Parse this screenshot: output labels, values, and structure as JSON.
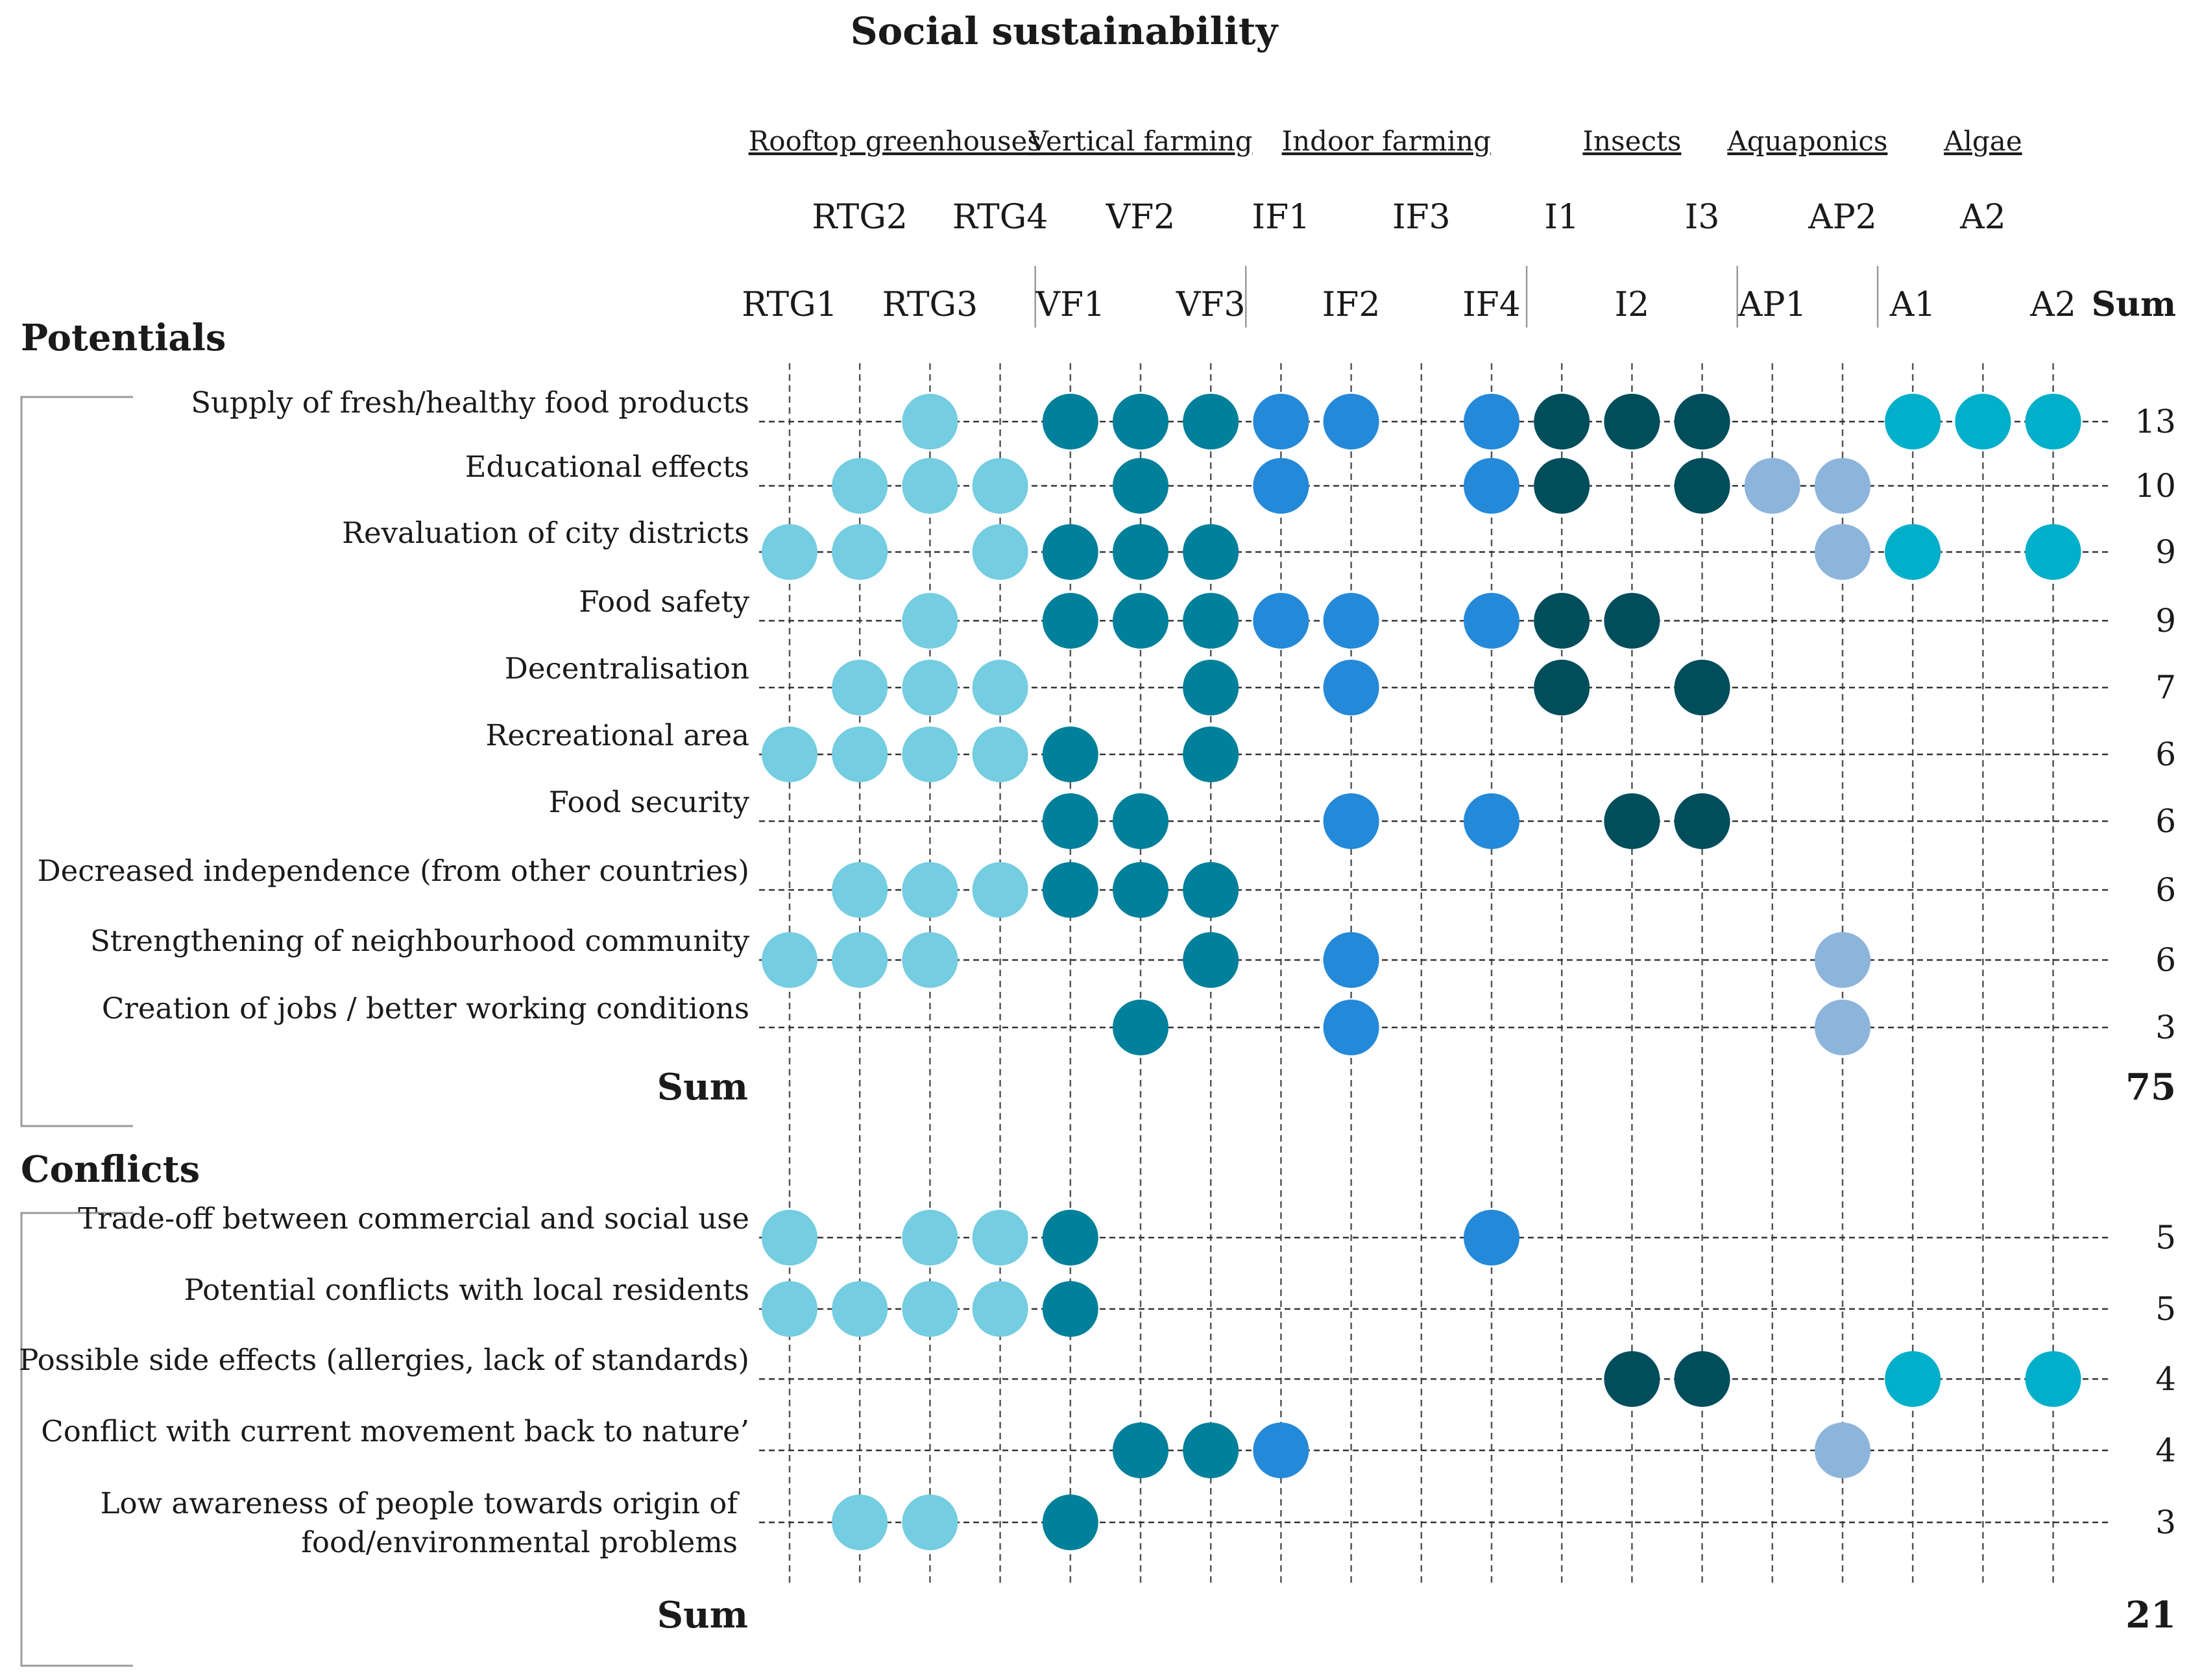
{
  "chart_data": {
    "type": "dot-matrix",
    "title": "Social sustainability",
    "groups": [
      {
        "name": "Rooftop greenhouses",
        "codes": [
          "RTG1",
          "RTG2",
          "RTG3",
          "RTG4"
        ],
        "color": "#74cde0"
      },
      {
        "name": "Vertical farming",
        "codes": [
          "VF1",
          "VF2",
          "VF3"
        ],
        "color": "#00809a"
      },
      {
        "name": "Indoor farming",
        "codes": [
          "IF1",
          "IF2",
          "IF3",
          "IF4"
        ],
        "color": "#2489d8"
      },
      {
        "name": "Insects",
        "codes": [
          "I1",
          "I2",
          "I3"
        ],
        "color": "#004d5c"
      },
      {
        "name": "Aquaponics",
        "codes": [
          "AP1",
          "AP2"
        ],
        "color": "#8db5dc"
      },
      {
        "name": "Algae",
        "codes": [
          "A1",
          "A2",
          "A2"
        ],
        "color": "#00afc9"
      }
    ],
    "sum_header": "Sum",
    "sections": [
      {
        "name": "Potentials",
        "rows": [
          {
            "label": "Supply of fresh/healthy food products",
            "marks": [
              3,
              5,
              6,
              7,
              8,
              9,
              11,
              12,
              13,
              14,
              17,
              18,
              19
            ],
            "sum": "13"
          },
          {
            "label": "Educational effects",
            "marks": [
              2,
              3,
              4,
              6,
              8,
              11,
              12,
              14,
              15,
              16
            ],
            "sum": "10"
          },
          {
            "label": "Revaluation of city districts",
            "marks": [
              1,
              2,
              4,
              5,
              6,
              7,
              16,
              17,
              19
            ],
            "sum": "9"
          },
          {
            "label": "Food safety",
            "marks": [
              3,
              5,
              6,
              7,
              8,
              9,
              11,
              12,
              13
            ],
            "sum": "9"
          },
          {
            "label": "Decentralisation",
            "marks": [
              2,
              3,
              4,
              7,
              9,
              12,
              14
            ],
            "sum": "7"
          },
          {
            "label": "Recreational area",
            "marks": [
              1,
              2,
              3,
              4,
              5,
              7
            ],
            "sum": "6"
          },
          {
            "label": "Food security",
            "marks": [
              5,
              6,
              9,
              11,
              13,
              14
            ],
            "sum": "6"
          },
          {
            "label": "Decreased independence (from other countries)",
            "marks": [
              2,
              3,
              4,
              5,
              6,
              7
            ],
            "sum": "6"
          },
          {
            "label": "Strengthening of neighbourhood community",
            "marks": [
              1,
              2,
              3,
              7,
              9,
              16
            ],
            "sum": "6"
          },
          {
            "label": "Creation of jobs / better working conditions",
            "marks": [
              6,
              9,
              16
            ],
            "sum": "3"
          }
        ],
        "sum_label": "Sum",
        "total": "75"
      },
      {
        "name": "Conflicts",
        "rows": [
          {
            "label": "Trade-off between commercial and social use",
            "marks": [
              1,
              3,
              4,
              5,
              11
            ],
            "sum": "5"
          },
          {
            "label": "Potential conflicts with local residents",
            "marks": [
              1,
              2,
              3,
              4,
              5
            ],
            "sum": "5"
          },
          {
            "label": "Possible side effects (allergies, lack of standards)",
            "marks": [
              13,
              14,
              17,
              19
            ],
            "sum": "4"
          },
          {
            "label": "Conflict with current movement back to nature’",
            "marks": [
              6,
              7,
              8,
              16
            ],
            "sum": "4"
          },
          {
            "label": "Low awareness of people towards origin of",
            "label2": "food/environmental problems",
            "marks": [
              2,
              3,
              5
            ],
            "sum": "3"
          }
        ],
        "sum_label": "Sum",
        "total": "21"
      }
    ]
  }
}
